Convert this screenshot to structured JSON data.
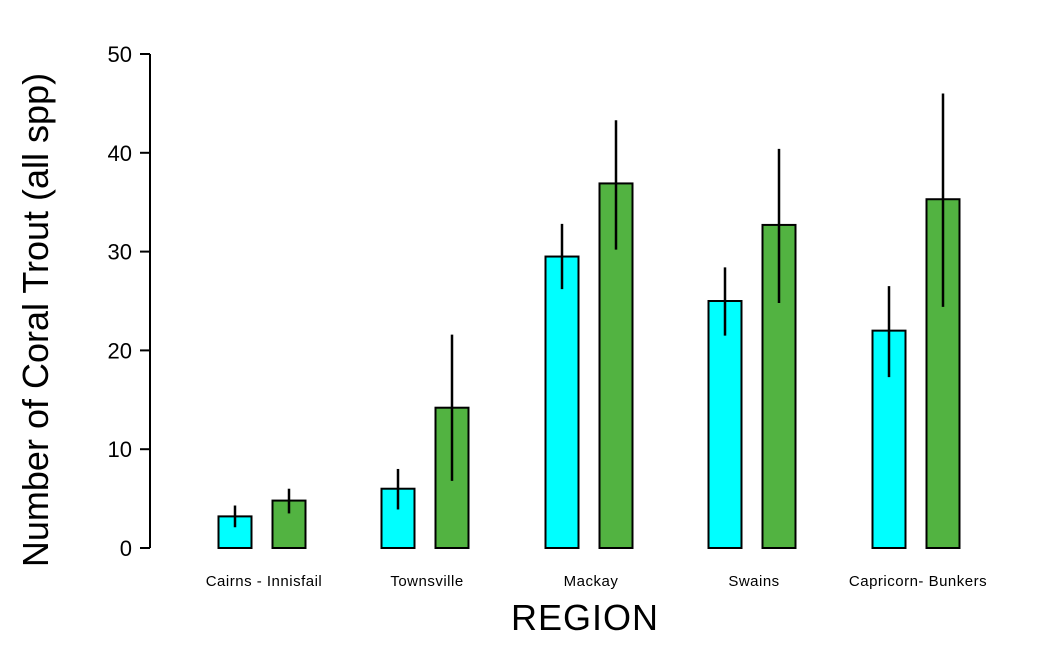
{
  "chart_data": {
    "type": "bar",
    "xlabel": "REGION",
    "ylabel": "Number of Coral Trout (all spp)",
    "ylim": [
      0,
      50
    ],
    "yticks": [
      0,
      10,
      20,
      30,
      40,
      50
    ],
    "categories": [
      "Cairns - Innisfail",
      "Townsville",
      "Mackay",
      "Swains",
      "Capricorn- Bunkers"
    ],
    "grid": false,
    "legend": "none",
    "series": [
      {
        "color": "#00ffff",
        "values": [
          3.2,
          6.0,
          29.5,
          25.0,
          22.0
        ],
        "err_low": [
          2.1,
          3.9,
          26.2,
          21.5,
          17.3
        ],
        "err_high": [
          4.3,
          8.0,
          32.8,
          28.4,
          26.5
        ]
      },
      {
        "color": "#52b341",
        "values": [
          4.8,
          14.2,
          36.9,
          32.7,
          35.3
        ],
        "err_low": [
          3.5,
          6.8,
          30.2,
          24.8,
          24.4
        ],
        "err_high": [
          6.0,
          21.6,
          43.3,
          40.4,
          46.0
        ]
      }
    ]
  }
}
